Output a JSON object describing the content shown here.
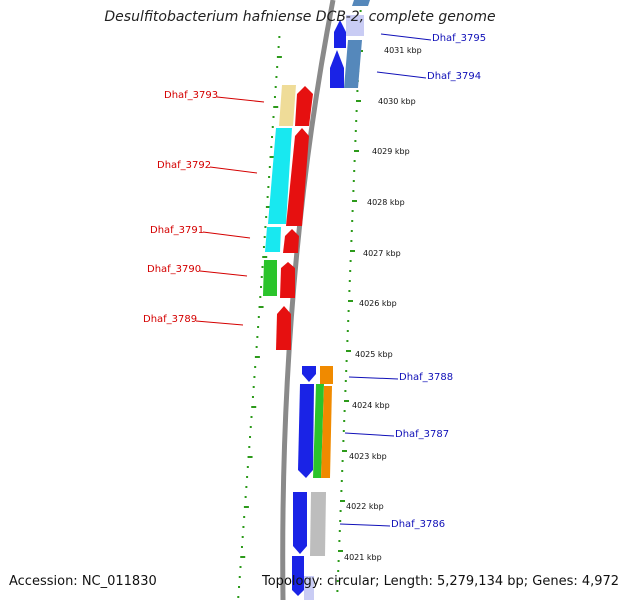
{
  "title": "Desulfitobacterium hafniense DCB-2, complete genome",
  "accession": "Accession: NC_011830",
  "topology": "Topology: circular; Length: 5,279,134 bp; Genes: 4,972",
  "colors": {
    "backbone": "#8a8a8a",
    "dots": "#2c9a1a",
    "left_label": "#d40000",
    "right_label": "#1010b8",
    "blue": "#1a23e6",
    "red": "#e61010",
    "cyan": "#18e8f0",
    "green": "#2bc42b",
    "orange": "#f08a00",
    "grey": "#bdbdbd",
    "tan": "#efdc98",
    "steel": "#5588bb",
    "lavender": "#c9ccf4"
  },
  "ticks": [
    "4031 kbp",
    "4030 kbp",
    "4029 kbp",
    "4028 kbp",
    "4027 kbp",
    "4026 kbp",
    "4025 kbp",
    "4024 kbp",
    "4023 kbp",
    "4022 kbp",
    "4021 kbp"
  ],
  "labels_left": [
    "Dhaf_3793",
    "Dhaf_3792",
    "Dhaf_3791",
    "Dhaf_3790",
    "Dhaf_3789"
  ],
  "labels_right": [
    "Dhaf_3795",
    "Dhaf_3794",
    "Dhaf_3787",
    "Dhaf_3788",
    "Dhaf_3786"
  ]
}
